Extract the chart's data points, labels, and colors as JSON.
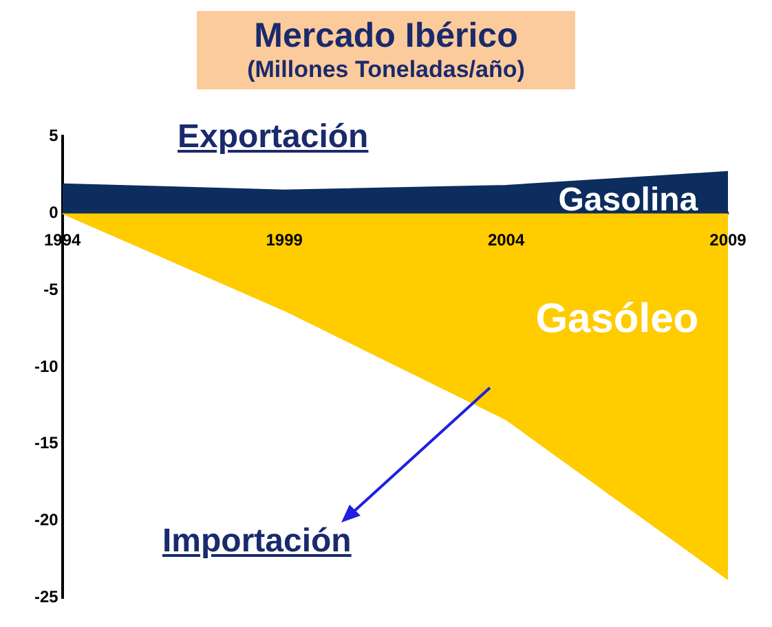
{
  "chart_data": {
    "type": "area",
    "title": "Mercado Ibérico",
    "subtitle": "(Millones Toneladas/año)",
    "categories": [
      "1994",
      "1999",
      "2004",
      "2009"
    ],
    "series": [
      {
        "name": "Gasolina",
        "color": "#0d2d5e",
        "values": [
          1.9,
          1.5,
          1.8,
          2.7
        ]
      },
      {
        "name": "Gasóleo",
        "color": "#ffcc00",
        "values": [
          0,
          -6.3,
          -13.4,
          -23.8
        ]
      }
    ],
    "ylim": [
      -25,
      5
    ],
    "yticks": [
      -25,
      -20,
      -15,
      -10,
      -5,
      0,
      5
    ],
    "annotations": [
      "Exportación",
      "Importación"
    ],
    "grid": false,
    "legend": false
  }
}
